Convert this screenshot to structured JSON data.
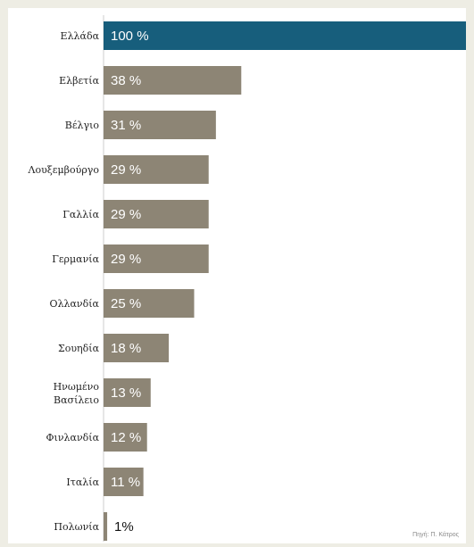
{
  "chart_data": {
    "type": "bar",
    "orientation": "horizontal",
    "categories": [
      "Ελλάδα",
      "Ελβετία",
      "Βέλγιο",
      "Λουξεμβούργο",
      "Γαλλία",
      "Γερμανία",
      "Ολλανδία",
      "Σουηδία",
      "Ηνωμένο Βασίλειο",
      "Φινλανδία",
      "Ιταλία",
      "Πολωνία"
    ],
    "values": [
      100,
      38,
      31,
      29,
      29,
      29,
      25,
      18,
      13,
      12,
      11,
      1
    ],
    "value_labels": [
      "100 %",
      "38 %",
      "31 %",
      "29 %",
      "29 %",
      "29 %",
      "25 %",
      "18 %",
      "13 %",
      "12 %",
      "11 %",
      "1%"
    ],
    "xlim": [
      0,
      100
    ],
    "grid": false,
    "colors": {
      "highlight": "#175e7c",
      "bar": "#8d8575",
      "label_inside": "#ffffff",
      "label_outside": "#111111"
    },
    "highlight_index": 0
  },
  "source": "Πηγή: Π. Κάτρος"
}
